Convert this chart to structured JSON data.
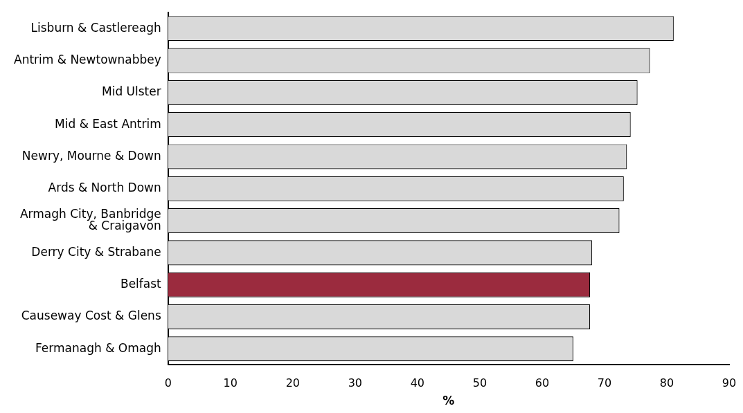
{
  "chart_data": {
    "type": "bar",
    "orientation": "horizontal",
    "xlabel": "%",
    "categories": [
      "Lisburn & Castlereagh",
      "Antrim & Newtownabbey",
      "Mid Ulster",
      "Mid & East Antrim",
      "Newry, Mourne & Down",
      "Ards & North Down",
      "Armagh City, Banbridge\n& Craigavon",
      "Derry City & Strabane",
      "Belfast",
      "Causeway Cost & Glens",
      "Fermanagh & Omagh"
    ],
    "values": [
      81.1,
      77.3,
      75.3,
      74.2,
      73.6,
      73.1,
      72.4,
      68.0,
      67.7,
      67.7,
      65.0
    ],
    "colors": [
      "#d9d9d9",
      "#d9d9d9",
      "#d9d9d9",
      "#d9d9d9",
      "#d9d9d9",
      "#d9d9d9",
      "#d9d9d9",
      "#d9d9d9",
      "#9b2b3e",
      "#d9d9d9",
      "#d9d9d9"
    ],
    "xlim": [
      0,
      90
    ],
    "xticks": [
      0,
      10,
      20,
      30,
      40,
      50,
      60,
      70,
      80,
      90
    ],
    "grid": false,
    "legend": false
  }
}
